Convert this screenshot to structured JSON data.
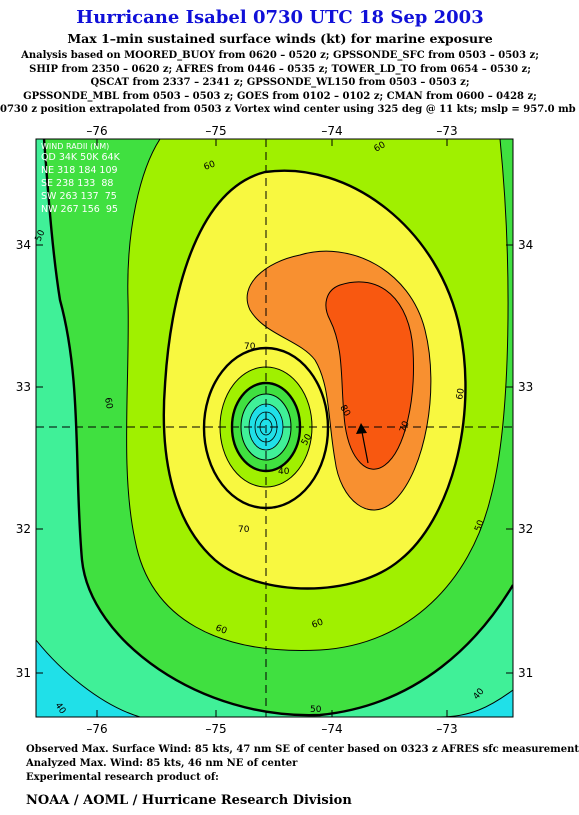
{
  "title": "Hurricane Isabel 0730 UTC 18 Sep 2003",
  "subtitle": "Max 1–min sustained surface winds (kt) for marine exposure",
  "analysis_lines": [
    "Analysis based on  MOORED_BUOY from 0620 – 0520 z;  GPSSONDE_SFC from 0503 – 0503 z;",
    "SHIP from 2350 – 0620 z;  AFRES from 0446 – 0535 z;  TOWER_LD_TO from 0654 – 0530 z;",
    "QSCAT from 2337 – 2341 z;  GPSSONDE_WL150 from 0503 – 0503 z;",
    "GPSSONDE_MBL from 0503 – 0503 z;  GOES from 0102 – 0102 z;  CMAN from 0600 – 0428 z;",
    "0730 z position extrapolated from 0503 z Vortex wind center using 325 deg @ 11 kts; mslp = 957.0 mb"
  ],
  "map": {
    "lon_ticks": [
      "–76",
      "–75",
      "–74",
      "–73"
    ],
    "lat_ticks": [
      "34",
      "33",
      "32",
      "31"
    ],
    "center": {
      "lon": -74.58,
      "lat": 32.72
    },
    "contour_labels": [
      "60",
      "60",
      "50",
      "70",
      "60",
      "80",
      "70",
      "60",
      "40",
      "50",
      "70",
      "60",
      "60",
      "50",
      "50",
      "40",
      "40"
    ],
    "colors": {
      "below_40": "#20e0e8",
      "40_50": "#40f098",
      "50_60": "#40e040",
      "60_70": "#a0f000",
      "70_80": "#f8f840",
      "80_90": "#f89030",
      "90_plus": "#f85810",
      "border": "#000000"
    },
    "wind_radii": {
      "header": "WIND RADII (NM)",
      "columns": "QD 34K 50K 64K",
      "rows": [
        "NE 318 184 109",
        "SE 238 133  88",
        "SW 263 137  75",
        "NW 267 156  95"
      ]
    }
  },
  "footer": {
    "observed": "Observed Max. Surface Wind: 85 kts, 47 nm SE of center based on 0323 z AFRES sfc measurement",
    "analyzed": "Analyzed Max. Wind: 85 kts, 46 nm NE of center",
    "experimental": "Experimental research product of:",
    "organization": "NOAA / AOML / Hurricane Research Division"
  }
}
